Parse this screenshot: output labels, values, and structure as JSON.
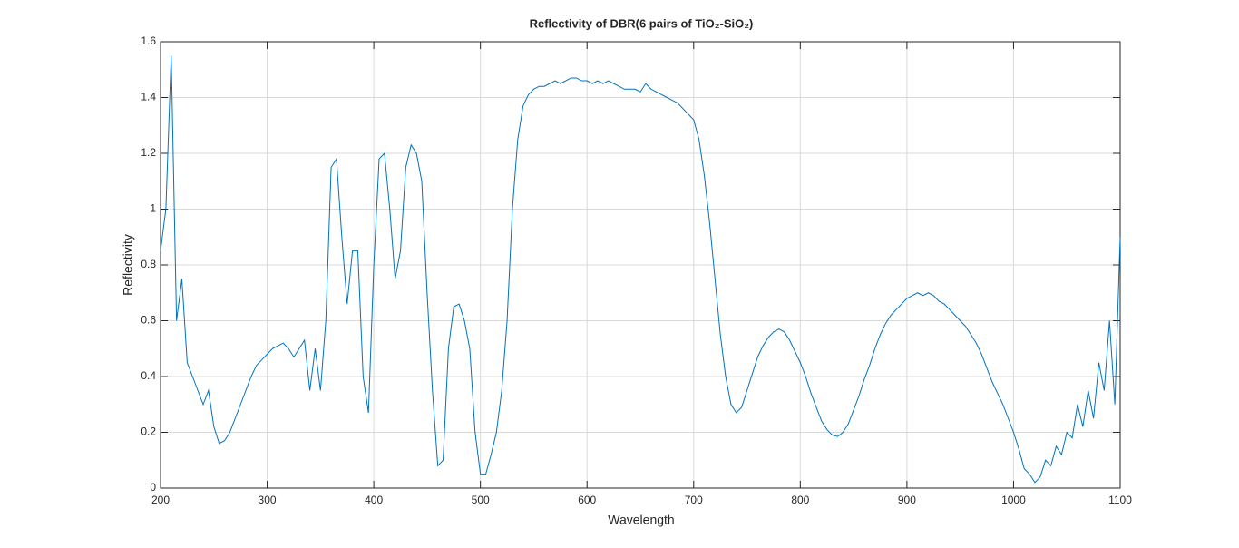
{
  "chart_data": {
    "type": "line",
    "title": "Reflectivity of DBR(6 pairs of TiO₂-SiO₂)",
    "x_label": "Wavelength",
    "y_label": "Reflectivity",
    "xlim": [
      200,
      1100
    ],
    "ylim": [
      0,
      1.6
    ],
    "xticks": [
      200,
      300,
      400,
      500,
      600,
      700,
      800,
      900,
      1000,
      1100
    ],
    "yticks": [
      0,
      0.2,
      0.4,
      0.6,
      0.8,
      1,
      1.2,
      1.4,
      1.6
    ],
    "grid": true,
    "x": [
      200,
      205,
      210,
      215,
      220,
      225,
      230,
      235,
      240,
      245,
      250,
      255,
      260,
      265,
      270,
      275,
      280,
      285,
      290,
      295,
      300,
      305,
      310,
      315,
      320,
      325,
      330,
      335,
      340,
      345,
      350,
      355,
      360,
      365,
      370,
      375,
      380,
      385,
      390,
      395,
      400,
      405,
      410,
      415,
      420,
      425,
      430,
      435,
      440,
      445,
      450,
      455,
      460,
      465,
      470,
      475,
      480,
      485,
      490,
      495,
      500,
      505,
      510,
      515,
      520,
      525,
      530,
      535,
      540,
      545,
      550,
      555,
      560,
      565,
      570,
      575,
      580,
      585,
      590,
      595,
      600,
      605,
      610,
      615,
      620,
      625,
      630,
      635,
      640,
      645,
      650,
      655,
      660,
      665,
      670,
      675,
      680,
      685,
      690,
      695,
      700,
      705,
      710,
      715,
      720,
      725,
      730,
      735,
      740,
      745,
      750,
      755,
      760,
      765,
      770,
      775,
      780,
      785,
      790,
      795,
      800,
      805,
      810,
      815,
      820,
      825,
      830,
      835,
      840,
      845,
      850,
      855,
      860,
      865,
      870,
      875,
      880,
      885,
      890,
      895,
      900,
      905,
      910,
      915,
      920,
      925,
      930,
      935,
      940,
      945,
      950,
      955,
      960,
      965,
      970,
      975,
      980,
      985,
      990,
      995,
      1000,
      1005,
      1010,
      1015,
      1020,
      1025,
      1030,
      1035,
      1040,
      1045,
      1050,
      1055,
      1060,
      1065,
      1070,
      1075,
      1080,
      1085,
      1090,
      1095,
      1100
    ],
    "series": [
      {
        "name": "Reflectivity",
        "color": "#0072bd",
        "values": [
          0.85,
          1.0,
          1.55,
          0.6,
          0.75,
          0.45,
          0.4,
          0.35,
          0.3,
          0.35,
          0.22,
          0.16,
          0.17,
          0.2,
          0.25,
          0.3,
          0.35,
          0.4,
          0.44,
          0.46,
          0.48,
          0.5,
          0.51,
          0.52,
          0.5,
          0.47,
          0.5,
          0.53,
          0.35,
          0.5,
          0.35,
          0.6,
          1.15,
          1.18,
          0.9,
          0.66,
          0.85,
          0.85,
          0.4,
          0.27,
          0.8,
          1.18,
          1.2,
          1.0,
          0.75,
          0.85,
          1.15,
          1.23,
          1.2,
          1.1,
          0.7,
          0.35,
          0.08,
          0.1,
          0.5,
          0.65,
          0.66,
          0.6,
          0.5,
          0.2,
          0.05,
          0.05,
          0.12,
          0.2,
          0.35,
          0.6,
          1.0,
          1.25,
          1.37,
          1.41,
          1.43,
          1.44,
          1.44,
          1.45,
          1.46,
          1.45,
          1.46,
          1.47,
          1.47,
          1.46,
          1.46,
          1.45,
          1.46,
          1.45,
          1.46,
          1.45,
          1.44,
          1.43,
          1.43,
          1.43,
          1.42,
          1.45,
          1.43,
          1.42,
          1.41,
          1.4,
          1.39,
          1.38,
          1.36,
          1.34,
          1.32,
          1.25,
          1.12,
          0.95,
          0.75,
          0.55,
          0.4,
          0.3,
          0.27,
          0.29,
          0.35,
          0.41,
          0.47,
          0.51,
          0.54,
          0.56,
          0.57,
          0.56,
          0.53,
          0.49,
          0.45,
          0.4,
          0.34,
          0.29,
          0.24,
          0.21,
          0.19,
          0.185,
          0.2,
          0.23,
          0.28,
          0.33,
          0.39,
          0.44,
          0.5,
          0.55,
          0.59,
          0.62,
          0.64,
          0.66,
          0.68,
          0.69,
          0.7,
          0.69,
          0.7,
          0.69,
          0.67,
          0.66,
          0.64,
          0.62,
          0.6,
          0.58,
          0.55,
          0.52,
          0.48,
          0.43,
          0.38,
          0.34,
          0.3,
          0.25,
          0.2,
          0.14,
          0.07,
          0.05,
          0.02,
          0.04,
          0.1,
          0.08,
          0.15,
          0.12,
          0.2,
          0.18,
          0.3,
          0.22,
          0.35,
          0.25,
          0.45,
          0.35,
          0.6,
          0.3,
          0.9
        ]
      }
    ]
  }
}
